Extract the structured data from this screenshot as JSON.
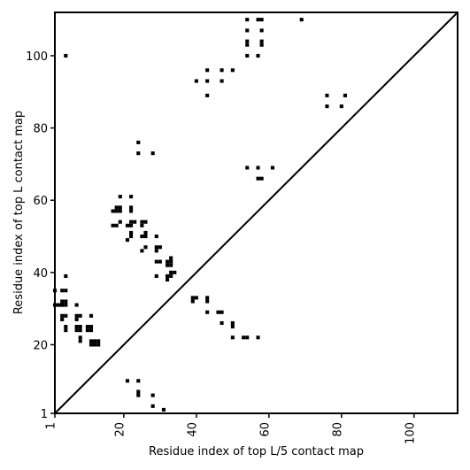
{
  "chart_data": {
    "type": "scatter",
    "marker": "square",
    "xlabel": "Residue index of top L/5 contact map",
    "ylabel": "Residue index of top L contact map",
    "xlim": [
      1,
      112
    ],
    "ylim": [
      1,
      112
    ],
    "xticks": [
      1,
      20,
      40,
      60,
      80,
      100
    ],
    "yticks": [
      1,
      20,
      40,
      60,
      80,
      100
    ],
    "diagonal": true,
    "colors": {
      "marks": "#000000",
      "background": "#ffffff"
    },
    "points": [
      [
        1,
        35
      ],
      [
        1,
        31
      ],
      [
        2,
        31
      ],
      [
        3,
        31
      ],
      [
        3,
        35
      ],
      [
        3,
        32
      ],
      [
        3,
        31
      ],
      [
        3,
        28
      ],
      [
        3,
        27
      ],
      [
        4,
        35
      ],
      [
        4,
        32
      ],
      [
        4,
        31
      ],
      [
        4,
        28
      ],
      [
        4,
        39
      ],
      [
        4,
        25
      ],
      [
        4,
        24
      ],
      [
        4,
        100
      ],
      [
        7,
        31
      ],
      [
        7,
        28
      ],
      [
        7,
        27
      ],
      [
        7,
        25
      ],
      [
        7,
        24
      ],
      [
        8,
        28
      ],
      [
        8,
        25
      ],
      [
        8,
        24
      ],
      [
        8,
        22
      ],
      [
        8,
        21
      ],
      [
        10,
        25
      ],
      [
        10,
        24
      ],
      [
        11,
        28
      ],
      [
        11,
        25
      ],
      [
        11,
        24
      ],
      [
        11,
        21
      ],
      [
        11,
        20
      ],
      [
        12,
        21
      ],
      [
        12,
        20
      ],
      [
        13,
        21
      ],
      [
        13,
        20
      ],
      [
        17,
        57
      ],
      [
        17,
        53
      ],
      [
        18,
        58
      ],
      [
        18,
        57
      ],
      [
        18,
        53
      ],
      [
        19,
        58
      ],
      [
        19,
        57
      ],
      [
        19,
        61
      ],
      [
        19,
        54
      ],
      [
        21,
        53
      ],
      [
        21,
        49
      ],
      [
        21,
        10
      ],
      [
        22,
        61
      ],
      [
        22,
        58
      ],
      [
        22,
        57
      ],
      [
        22,
        54
      ],
      [
        22,
        53
      ],
      [
        22,
        51
      ],
      [
        22,
        50
      ],
      [
        23,
        54
      ],
      [
        24,
        76
      ],
      [
        24,
        73
      ],
      [
        24,
        10
      ],
      [
        24,
        7
      ],
      [
        24,
        6
      ],
      [
        25,
        54
      ],
      [
        25,
        53
      ],
      [
        25,
        50
      ],
      [
        25,
        46
      ],
      [
        26,
        54
      ],
      [
        26,
        51
      ],
      [
        26,
        50
      ],
      [
        26,
        47
      ],
      [
        28,
        73
      ],
      [
        28,
        6
      ],
      [
        28,
        3
      ],
      [
        29,
        50
      ],
      [
        29,
        47
      ],
      [
        29,
        46
      ],
      [
        29,
        43
      ],
      [
        29,
        39
      ],
      [
        30,
        47
      ],
      [
        30,
        43
      ],
      [
        31,
        2
      ],
      [
        32,
        43
      ],
      [
        32,
        42
      ],
      [
        32,
        39
      ],
      [
        32,
        38
      ],
      [
        33,
        44
      ],
      [
        33,
        43
      ],
      [
        33,
        42
      ],
      [
        33,
        40
      ],
      [
        33,
        39
      ],
      [
        34,
        40
      ],
      [
        39,
        33
      ],
      [
        39,
        32
      ],
      [
        40,
        93
      ],
      [
        40,
        33
      ],
      [
        43,
        96
      ],
      [
        43,
        93
      ],
      [
        43,
        89
      ],
      [
        43,
        33
      ],
      [
        43,
        32
      ],
      [
        43,
        29
      ],
      [
        46,
        29
      ],
      [
        47,
        96
      ],
      [
        47,
        93
      ],
      [
        47,
        29
      ],
      [
        47,
        26
      ],
      [
        50,
        96
      ],
      [
        50,
        26
      ],
      [
        50,
        25
      ],
      [
        50,
        22
      ],
      [
        53,
        22
      ],
      [
        54,
        110
      ],
      [
        54,
        107
      ],
      [
        54,
        104
      ],
      [
        54,
        103
      ],
      [
        54,
        100
      ],
      [
        54,
        69
      ],
      [
        54,
        22
      ],
      [
        57,
        110
      ],
      [
        57,
        100
      ],
      [
        57,
        69
      ],
      [
        57,
        66
      ],
      [
        57,
        22
      ],
      [
        58,
        110
      ],
      [
        58,
        107
      ],
      [
        58,
        104
      ],
      [
        58,
        103
      ],
      [
        58,
        66
      ],
      [
        61,
        69
      ],
      [
        69,
        110
      ],
      [
        76,
        89
      ],
      [
        76,
        86
      ],
      [
        80,
        86
      ],
      [
        81,
        89
      ]
    ]
  }
}
